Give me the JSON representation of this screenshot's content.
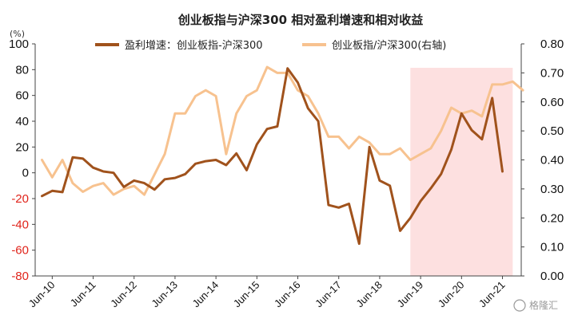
{
  "chart_data": {
    "type": "line",
    "title": "创业板指与沪深300 相对盈利增速和相对收益",
    "left_axis_unit": "(%)",
    "left_axis": {
      "ylim": [
        -80,
        100
      ],
      "ticks": [
        "100",
        "80",
        "60",
        "40",
        "20",
        "0",
        "-20",
        "-40",
        "-60",
        "-80"
      ]
    },
    "right_axis": {
      "ylim": [
        0.0,
        0.8
      ],
      "ticks": [
        "0.80",
        "0.70",
        "0.60",
        "0.50",
        "0.40",
        "0.30",
        "0.20",
        "0.10",
        "0.00"
      ]
    },
    "x_tick_labels": [
      "Jun-10",
      "Jun-11",
      "Jun-12",
      "Jun-13",
      "Jun-14",
      "Jun-15",
      "Jun-16",
      "Jun-17",
      "Jun-18",
      "Jun-19",
      "Jun-20",
      "Jun-21"
    ],
    "shaded_region": {
      "start": "2019-03",
      "end": "2021-09",
      "color": "#fde0e0"
    },
    "series": [
      {
        "name": "盈利增速：创业板指-沪深300",
        "axis": "left",
        "color": "#a0521c",
        "points": [
          [
            "2010-03",
            -18
          ],
          [
            "2010-06",
            -14
          ],
          [
            "2010-09",
            -15
          ],
          [
            "2010-12",
            12
          ],
          [
            "2011-03",
            11
          ],
          [
            "2011-06",
            4
          ],
          [
            "2011-09",
            1
          ],
          [
            "2011-12",
            0
          ],
          [
            "2012-03",
            -11
          ],
          [
            "2012-06",
            -6
          ],
          [
            "2012-09",
            -8
          ],
          [
            "2012-12",
            -13
          ],
          [
            "2013-03",
            -5
          ],
          [
            "2013-06",
            -4
          ],
          [
            "2013-09",
            -1
          ],
          [
            "2013-12",
            7
          ],
          [
            "2014-03",
            9
          ],
          [
            "2014-06",
            10
          ],
          [
            "2014-09",
            6
          ],
          [
            "2014-12",
            15
          ],
          [
            "2015-03",
            2
          ],
          [
            "2015-06",
            22
          ],
          [
            "2015-09",
            34
          ],
          [
            "2015-12",
            36
          ],
          [
            "2016-03",
            81
          ],
          [
            "2016-06",
            70
          ],
          [
            "2016-09",
            50
          ],
          [
            "2016-12",
            40
          ],
          [
            "2017-03",
            -25
          ],
          [
            "2017-06",
            -27
          ],
          [
            "2017-09",
            -24
          ],
          [
            "2017-12",
            -55
          ],
          [
            "2018-03",
            20
          ],
          [
            "2018-06",
            -6
          ],
          [
            "2018-09",
            -10
          ],
          [
            "2018-12",
            -45
          ],
          [
            "2019-03",
            -35
          ],
          [
            "2019-06",
            -22
          ],
          [
            "2019-09",
            -12
          ],
          [
            "2019-12",
            -1
          ],
          [
            "2020-03",
            18
          ],
          [
            "2020-06",
            46
          ],
          [
            "2020-09",
            33
          ],
          [
            "2020-12",
            26
          ],
          [
            "2021-03",
            58
          ],
          [
            "2021-06",
            1
          ]
        ]
      },
      {
        "name": "创业板指/沪深300(右轴)",
        "axis": "right",
        "color": "#f7c28f",
        "points": [
          [
            "2010-03",
            0.4
          ],
          [
            "2010-06",
            0.34
          ],
          [
            "2010-09",
            0.4
          ],
          [
            "2010-12",
            0.32
          ],
          [
            "2011-03",
            0.29
          ],
          [
            "2011-06",
            0.31
          ],
          [
            "2011-09",
            0.32
          ],
          [
            "2011-12",
            0.28
          ],
          [
            "2012-03",
            0.3
          ],
          [
            "2012-06",
            0.31
          ],
          [
            "2012-09",
            0.28
          ],
          [
            "2012-12",
            0.35
          ],
          [
            "2013-03",
            0.42
          ],
          [
            "2013-06",
            0.56
          ],
          [
            "2013-09",
            0.56
          ],
          [
            "2013-12",
            0.62
          ],
          [
            "2014-03",
            0.64
          ],
          [
            "2014-06",
            0.62
          ],
          [
            "2014-09",
            0.42
          ],
          [
            "2014-12",
            0.56
          ],
          [
            "2015-03",
            0.62
          ],
          [
            "2015-06",
            0.64
          ],
          [
            "2015-09",
            0.72
          ],
          [
            "2015-12",
            0.7
          ],
          [
            "2016-03",
            0.7
          ],
          [
            "2016-06",
            0.64
          ],
          [
            "2016-09",
            0.62
          ],
          [
            "2016-12",
            0.56
          ],
          [
            "2017-03",
            0.48
          ],
          [
            "2017-06",
            0.48
          ],
          [
            "2017-09",
            0.44
          ],
          [
            "2017-12",
            0.48
          ],
          [
            "2018-03",
            0.46
          ],
          [
            "2018-06",
            0.42
          ],
          [
            "2018-09",
            0.42
          ],
          [
            "2018-12",
            0.44
          ],
          [
            "2019-03",
            0.4
          ],
          [
            "2019-06",
            0.42
          ],
          [
            "2019-09",
            0.44
          ],
          [
            "2019-12",
            0.5
          ],
          [
            "2020-03",
            0.58
          ],
          [
            "2020-06",
            0.56
          ],
          [
            "2020-09",
            0.57
          ],
          [
            "2020-12",
            0.55
          ],
          [
            "2021-03",
            0.66
          ],
          [
            "2021-06",
            0.66
          ],
          [
            "2021-09",
            0.67
          ],
          [
            "2021-12",
            0.64
          ]
        ]
      }
    ]
  },
  "watermark": {
    "text": "格隆汇"
  },
  "colors": {
    "left_negative_tick": "#e0241b"
  }
}
